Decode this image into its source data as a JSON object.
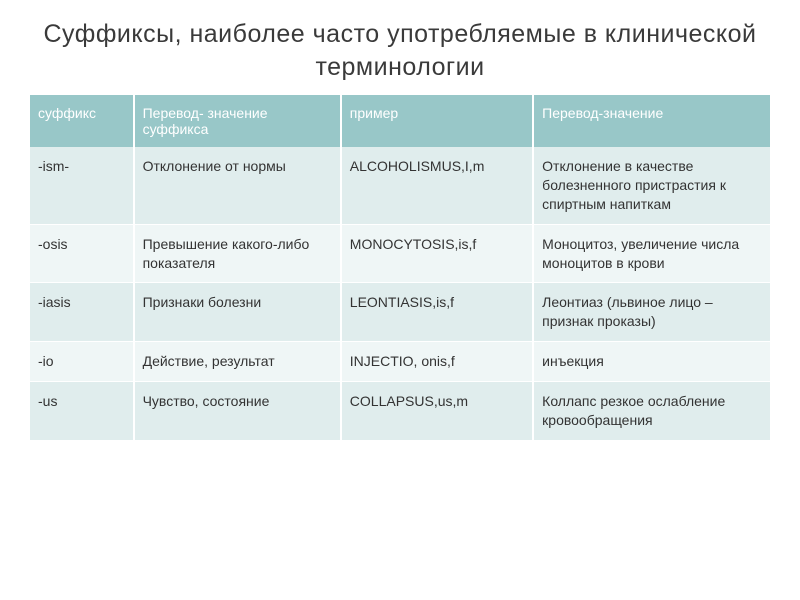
{
  "slide": {
    "title": "Суффиксы, наиболее часто употребляемые в клинической терминологии",
    "table": {
      "headers": {
        "suffix": "суффикс",
        "meaning": "Перевод- значение суффикса",
        "example": "пример",
        "translation": "Перевод-значение"
      },
      "rows": [
        {
          "suffix": "-ism-",
          "meaning": "Отклонение от нормы",
          "example": "ALCOHOLISMUS,I,m",
          "translation": "Отклонение в качестве болезненного пристрастия к спиртным напиткам"
        },
        {
          "suffix": "-osis",
          "meaning": "Превышение какого-либо показателя",
          "example": "MONOCYTOSIS,is,f",
          "translation": "Моноцитоз, увеличение числа моноцитов в крови"
        },
        {
          "suffix": "-iasis",
          "meaning": "Признаки болезни",
          "example": "LEONTIASIS,is,f",
          "translation": "Леонтиаз (львиное лицо – признак проказы)"
        },
        {
          "suffix": "-io",
          "meaning": "Действие, результат",
          "example": "INJECTIO, onis,f",
          "translation": "инъекция"
        },
        {
          "suffix": "-us",
          "meaning": "Чувство, состояние",
          "example": "COLLAPSUS,us,m",
          "translation": "Коллапс резкое ослабление кровообращения"
        }
      ]
    },
    "styles": {
      "background_color": "#ffffff",
      "title_color": "#3a3a3a",
      "title_fontsize": 25,
      "header_bg": "#98c7c8",
      "header_text_color": "#ffffff",
      "row_odd_bg": "#e0eded",
      "row_even_bg": "#eff6f6",
      "cell_text_color": "#333333",
      "cell_fontsize": 14,
      "border_color": "#ffffff",
      "col_widths": [
        "14%",
        "28%",
        "26%",
        "32%"
      ]
    }
  }
}
